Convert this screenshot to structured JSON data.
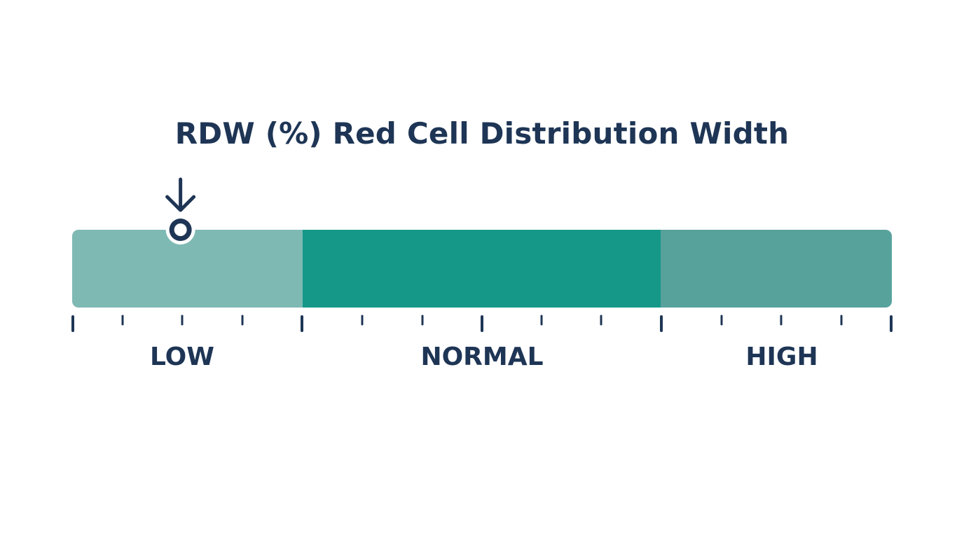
{
  "title": "RDW (%) Red Cell Distribution Width",
  "zones": [
    {
      "label": "LOW",
      "color": "#7fb9b4"
    },
    {
      "label": "NORMAL",
      "color": "#159888"
    },
    {
      "label": "HIGH",
      "color": "#58a29c"
    }
  ],
  "indicator": {
    "zone": "LOW",
    "position_in_zone": 0.47
  },
  "colors": {
    "text": "#1e3555",
    "marker": "#1e3555",
    "marker_fill": "#ffffff"
  }
}
